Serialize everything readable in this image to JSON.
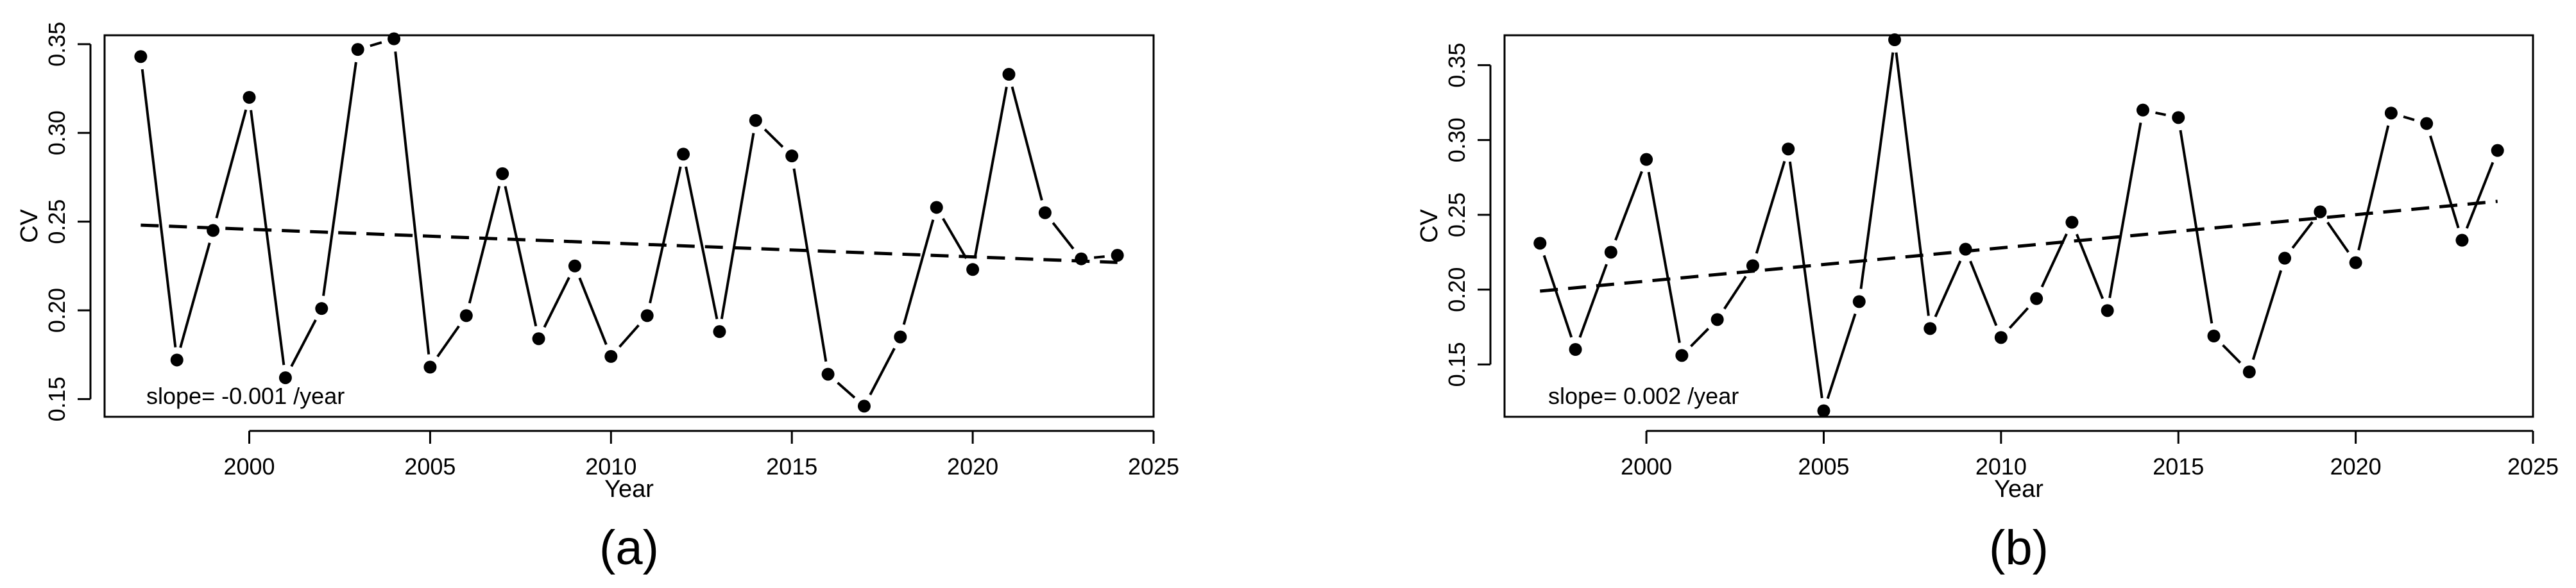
{
  "chart_data": [
    {
      "type": "line",
      "panel_label": "(a)",
      "xlabel": "Year",
      "ylabel": "CV",
      "xlim": [
        1996,
        2025
      ],
      "ylim": [
        0.14,
        0.355
      ],
      "x_ticks": [
        2000,
        2005,
        2010,
        2015,
        2020,
        2025
      ],
      "y_ticks": [
        0.15,
        0.2,
        0.25,
        0.3,
        0.35
      ],
      "y_tick_labels": [
        "0.15",
        "0.20",
        "0.25",
        "0.30",
        "0.35"
      ],
      "grid": false,
      "annotation": "slope= -0.001 /year",
      "x": [
        1997,
        1998,
        1999,
        2000,
        2001,
        2002,
        2003,
        2004,
        2005,
        2006,
        2007,
        2008,
        2009,
        2010,
        2011,
        2012,
        2013,
        2014,
        2015,
        2016,
        2017,
        2018,
        2019,
        2020,
        2021,
        2022,
        2023,
        2024
      ],
      "y": [
        0.343,
        0.172,
        0.245,
        0.32,
        0.162,
        0.201,
        0.347,
        0.353,
        0.168,
        0.197,
        0.277,
        0.184,
        0.225,
        0.174,
        0.197,
        0.288,
        0.188,
        0.307,
        0.287,
        0.164,
        0.146,
        0.185,
        0.258,
        0.223,
        0.333,
        0.255,
        0.229,
        0.231
      ],
      "trend": {
        "x": [
          1997,
          2024
        ],
        "y": [
          0.248,
          0.227
        ]
      }
    },
    {
      "type": "line",
      "panel_label": "(b)",
      "xlabel": "Year",
      "ylabel": "CV",
      "xlim": [
        1996,
        2025
      ],
      "ylim": [
        0.115,
        0.37
      ],
      "x_ticks": [
        2000,
        2005,
        2010,
        2015,
        2020,
        2025
      ],
      "y_ticks": [
        0.15,
        0.2,
        0.25,
        0.3,
        0.35
      ],
      "y_tick_labels": [
        "0.15",
        "0.20",
        "0.25",
        "0.30",
        "0.35"
      ],
      "grid": false,
      "annotation": "slope= 0.002 /year",
      "x": [
        1997,
        1998,
        1999,
        2000,
        2001,
        2002,
        2003,
        2004,
        2005,
        2006,
        2007,
        2008,
        2009,
        2010,
        2011,
        2012,
        2013,
        2014,
        2015,
        2016,
        2017,
        2018,
        2019,
        2020,
        2021,
        2022,
        2023,
        2024
      ],
      "y": [
        0.231,
        0.16,
        0.225,
        0.287,
        0.156,
        0.18,
        0.216,
        0.294,
        0.119,
        0.192,
        0.367,
        0.174,
        0.227,
        0.168,
        0.194,
        0.245,
        0.186,
        0.32,
        0.315,
        0.169,
        0.145,
        0.221,
        0.252,
        0.218,
        0.318,
        0.311,
        0.233,
        0.293
      ],
      "trend": {
        "x": [
          1997,
          2024
        ],
        "y": [
          0.199,
          0.259
        ]
      }
    }
  ]
}
